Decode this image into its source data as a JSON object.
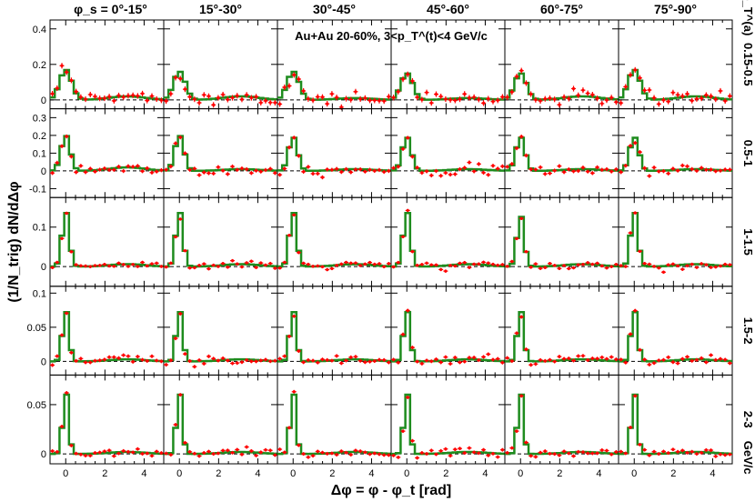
{
  "chart_data": {
    "type": "line",
    "annotation": "Au+Au 20-60%, 3<p_T^(t)<4 GeV/c",
    "xlabel": "Δφ = φ - φ_t  [rad]",
    "ylabel": "(1/N_trig) dN/dΔφ",
    "xlim": [
      -0.8,
      5.0
    ],
    "x_ticks": [
      "0",
      "2",
      "4"
    ],
    "column_header_prefix": "φ_s =",
    "columns": [
      "0°-15°",
      "15°-30°",
      "30°-45°",
      "45°-60°",
      "60°-75°",
      "75°-90°"
    ],
    "row_header": "p_T^(a)",
    "row_unit": "GeV/c",
    "rows": [
      {
        "label": "0.15-0.5",
        "ylim": [
          -0.05,
          0.45
        ],
        "yticks": [
          "0",
          "0.2",
          "0.4"
        ],
        "ytick_values": [
          0,
          0.2,
          0.4
        ],
        "peak": [
          0.17,
          0.16,
          0.16,
          0.15,
          0.15,
          0.17
        ],
        "near_width": 0.55,
        "away": [
          0.02,
          0.02,
          0.01,
          0.01,
          0.02,
          0.02
        ],
        "noise": 0.035
      },
      {
        "label": "0.5-1",
        "ylim": [
          -0.15,
          0.35
        ],
        "yticks": [
          "-0.1",
          "0",
          "0.1",
          "0.2",
          "0.3"
        ],
        "ytick_values": [
          -0.1,
          0,
          0.1,
          0.2,
          0.3
        ],
        "peak": [
          0.2,
          0.2,
          0.19,
          0.19,
          0.19,
          0.19
        ],
        "near_width": 0.42,
        "away": [
          0.02,
          0.01,
          0.01,
          0.01,
          0.01,
          0.01
        ],
        "noise": 0.025
      },
      {
        "label": "1-1.5",
        "ylim": [
          -0.05,
          0.175
        ],
        "yticks": [
          "0",
          "0.1"
        ],
        "ytick_values": [
          0,
          0.1
        ],
        "peak": [
          0.14,
          0.14,
          0.14,
          0.14,
          0.13,
          0.14
        ],
        "near_width": 0.33,
        "away": [
          0.006,
          0.006,
          0.006,
          0.006,
          0.006,
          0.006
        ],
        "noise": 0.009
      },
      {
        "label": "1.5-2",
        "ylim": [
          -0.02,
          0.11
        ],
        "yticks": [
          "0",
          "0.05",
          "0.1"
        ],
        "ytick_values": [
          0,
          0.05,
          0.1
        ],
        "peak": [
          0.075,
          0.075,
          0.075,
          0.075,
          0.075,
          0.075
        ],
        "near_width": 0.3,
        "away": [
          0.003,
          0.003,
          0.003,
          0.003,
          0.003,
          0.003
        ],
        "noise": 0.006
      },
      {
        "label": "2-3",
        "ylim": [
          -0.01,
          0.08
        ],
        "yticks": [
          "0",
          "0.05"
        ],
        "ytick_values": [
          0,
          0.05
        ],
        "peak": [
          0.063,
          0.063,
          0.063,
          0.063,
          0.063,
          0.063
        ],
        "near_width": 0.27,
        "away": [
          0.002,
          0.002,
          0.002,
          0.002,
          0.002,
          0.002
        ],
        "noise": 0.004
      }
    ],
    "series": [
      {
        "name": "data (points with error bars)",
        "color": "#ff0000"
      },
      {
        "name": "model (histogram)",
        "color": "#1e8c1e"
      }
    ],
    "zero_line": "dashed"
  }
}
